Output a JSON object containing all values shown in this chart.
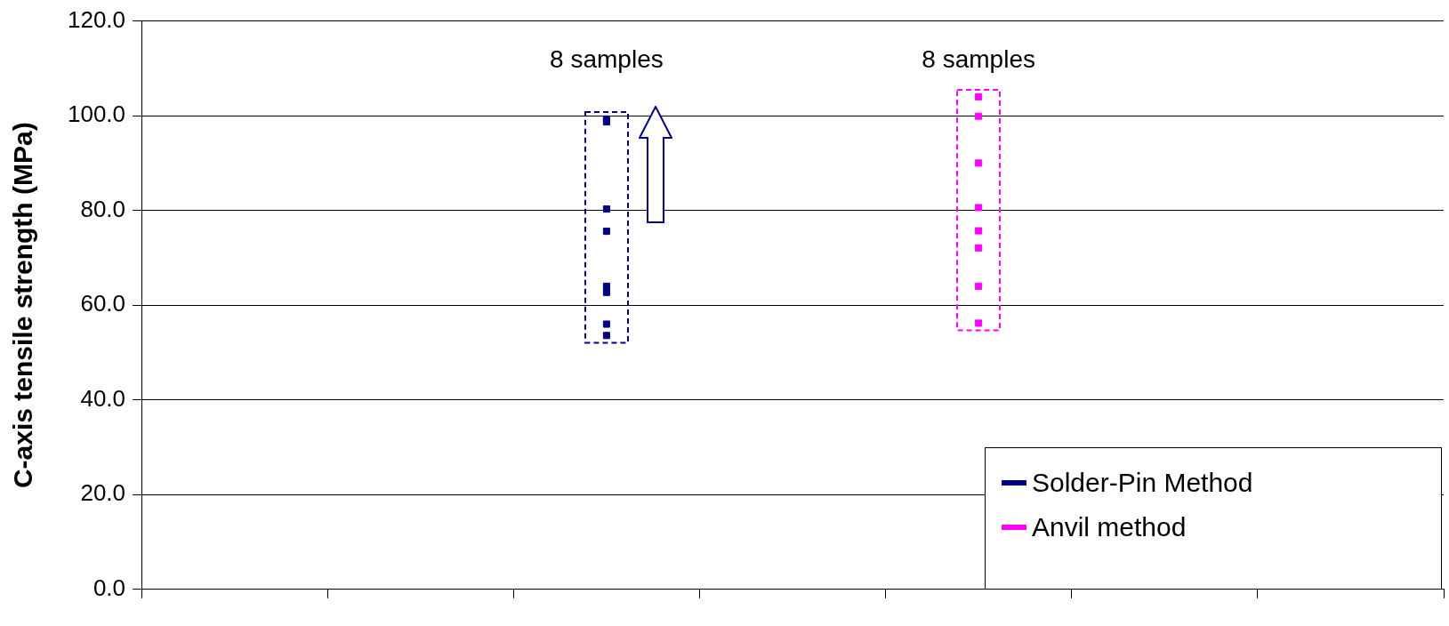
{
  "chart_data": {
    "type": "scatter",
    "ylabel": "C-axis tensile strength (MPa)",
    "categories": [
      null,
      null,
      null,
      null,
      null,
      null,
      null
    ],
    "ylim": [
      0,
      120
    ],
    "yticks": [
      {
        "value": 0,
        "label": "0.0"
      },
      {
        "value": 20,
        "label": "20.0"
      },
      {
        "value": 40,
        "label": "40.0"
      },
      {
        "value": 60,
        "label": "60.0"
      },
      {
        "value": 80,
        "label": "80.0"
      },
      {
        "value": 100,
        "label": "100.0"
      },
      {
        "value": 120,
        "label": "120.0"
      }
    ],
    "grid": "y",
    "legend": "bottom right",
    "marker": "square",
    "series": [
      {
        "name": "Solder-Pin Method",
        "color": "#000080",
        "values": [
          null,
          null,
          99.3,
          null,
          null,
          null,
          null
        ]
      },
      {
        "color": "#000080",
        "values": [
          null,
          null,
          98.7,
          null,
          null,
          null,
          null
        ]
      },
      {
        "color": "#000080",
        "values": [
          null,
          null,
          80.3,
          null,
          null,
          null,
          null
        ]
      },
      {
        "color": "#000080",
        "values": [
          null,
          null,
          75.6,
          null,
          null,
          null,
          null
        ]
      },
      {
        "color": "#000080",
        "values": [
          null,
          null,
          64.0,
          null,
          null,
          null,
          null
        ]
      },
      {
        "color": "#000080",
        "values": [
          null,
          null,
          62.7,
          null,
          null,
          null,
          null
        ]
      },
      {
        "color": "#000080",
        "values": [
          null,
          null,
          56.0,
          null,
          null,
          null,
          null
        ]
      },
      {
        "color": "#000080",
        "values": [
          null,
          null,
          53.6,
          null,
          null,
          null,
          null
        ]
      },
      {
        "name": "Anvil method",
        "color": "#ff00ff",
        "values": [
          null,
          null,
          null,
          null,
          104.0,
          null,
          null
        ]
      },
      {
        "color": "#ff00ff",
        "values": [
          null,
          null,
          null,
          null,
          99.9,
          null,
          null
        ]
      },
      {
        "color": "#ff00ff",
        "values": [
          null,
          null,
          null,
          null,
          90.0,
          null,
          null
        ]
      },
      {
        "color": "#ff00ff",
        "values": [
          null,
          null,
          null,
          null,
          80.6,
          null,
          null
        ]
      },
      {
        "color": "#ff00ff",
        "values": [
          null,
          null,
          null,
          null,
          75.7,
          null,
          null
        ]
      },
      {
        "color": "#ff00ff",
        "values": [
          null,
          null,
          null,
          null,
          72.1,
          null,
          null
        ]
      },
      {
        "color": "#ff00ff",
        "values": [
          null,
          null,
          null,
          null,
          64.0,
          null,
          null
        ]
      },
      {
        "color": "#ff00ff",
        "values": [
          null,
          null,
          null,
          null,
          56.2,
          null,
          null
        ]
      }
    ],
    "annotations": [
      "8 samples",
      "8 samples"
    ]
  }
}
